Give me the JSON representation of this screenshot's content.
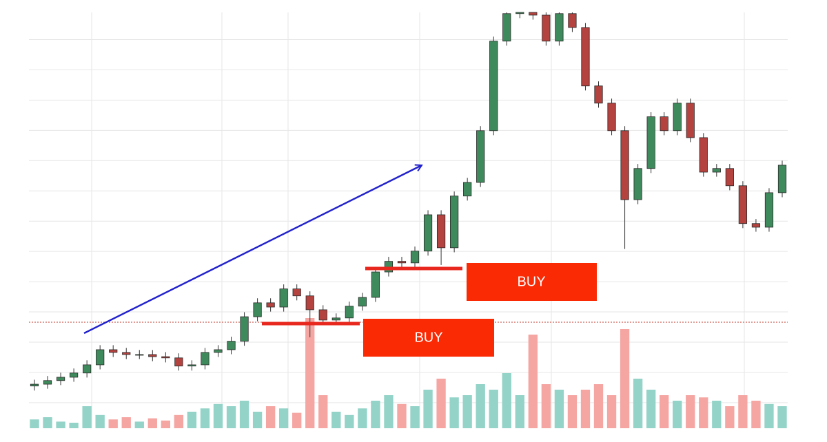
{
  "chart_data": {
    "type": "candlestick",
    "ylim": [
      -8,
      129
    ],
    "yticks": [
      0,
      10,
      20,
      30,
      40,
      50,
      60,
      70,
      80,
      90,
      100,
      110,
      120
    ],
    "grid": true,
    "up_color": "#3f8a5c",
    "down_color": "#b4423f",
    "open": [
      5.5,
      6.1,
      7.3,
      8.4,
      9.8,
      12.5,
      17.5,
      16.6,
      15.9,
      15.9,
      15.2,
      14.8,
      12.1,
      12.5,
      16.6,
      17.5,
      20.3,
      28.4,
      33.0,
      31.6,
      37.6,
      35.3,
      30.7,
      27.3,
      28.0,
      31.9,
      34.8,
      43.2,
      46.7,
      46.2,
      50.1,
      62.1,
      51.2,
      68.3,
      72.8,
      89.9,
      119.5,
      128.6,
      129.0,
      128.1,
      119.5,
      128.6,
      124.0,
      104.7,
      99.0,
      89.9,
      67.1,
      77.4,
      94.5,
      89.9,
      99.0,
      87.6,
      76.2,
      77.4,
      71.7,
      59.2,
      58.0,
      69.4
    ],
    "high": [
      7.6,
      8.8,
      9.9,
      11.3,
      14.0,
      19.0,
      19.0,
      18.1,
      17.4,
      17.4,
      16.7,
      16.3,
      14.0,
      18.1,
      19.0,
      21.8,
      29.9,
      34.5,
      34.5,
      39.1,
      39.1,
      36.8,
      32.2,
      29.5,
      33.4,
      36.3,
      44.7,
      48.2,
      48.2,
      51.6,
      63.6,
      63.6,
      69.8,
      74.3,
      91.4,
      121.0,
      129.0,
      129.0,
      129.0,
      129.0,
      129.0,
      129.0,
      125.5,
      106.2,
      100.5,
      91.4,
      78.9,
      96.0,
      96.0,
      100.5,
      100.5,
      89.1,
      78.9,
      78.9,
      73.2,
      60.7,
      70.9,
      80.0
    ],
    "low": [
      4.0,
      4.6,
      5.8,
      6.9,
      8.3,
      11.0,
      15.1,
      14.4,
      14.4,
      13.7,
      13.3,
      10.6,
      10.6,
      11.0,
      15.1,
      16.0,
      18.8,
      26.9,
      30.1,
      30.1,
      33.8,
      21.6,
      25.8,
      25.8,
      26.5,
      30.4,
      33.3,
      41.7,
      44.7,
      44.7,
      48.6,
      45.5,
      49.7,
      66.8,
      71.3,
      88.4,
      118.0,
      127.1,
      126.6,
      118.0,
      118.0,
      122.5,
      103.2,
      97.5,
      88.4,
      50.8,
      65.6,
      75.9,
      88.4,
      88.4,
      86.1,
      74.7,
      74.7,
      70.2,
      57.7,
      56.5,
      56.5,
      67.9
    ],
    "close": [
      6.1,
      7.3,
      8.4,
      9.8,
      12.5,
      17.5,
      16.6,
      15.9,
      15.9,
      15.2,
      14.8,
      12.1,
      12.5,
      16.6,
      17.5,
      20.3,
      28.4,
      33.0,
      31.6,
      37.6,
      35.3,
      30.7,
      27.3,
      28.0,
      31.9,
      34.8,
      43.2,
      46.7,
      46.2,
      50.1,
      62.1,
      51.2,
      68.3,
      72.8,
      89.9,
      119.5,
      128.6,
      129.0,
      128.1,
      119.5,
      128.6,
      124.0,
      104.7,
      99.0,
      89.9,
      67.1,
      77.4,
      94.5,
      89.9,
      99.0,
      87.6,
      76.2,
      77.4,
      71.7,
      59.2,
      58.0,
      69.4,
      78.5
    ],
    "volume": {
      "axis": "y2",
      "up_color": "#93d3c8",
      "down_color": "#f5a6a3",
      "values": [
        8,
        10,
        6,
        5,
        20,
        12,
        8,
        10,
        6,
        9,
        7,
        12,
        15,
        18,
        22,
        20,
        25,
        15,
        20,
        18,
        14,
        100,
        30,
        15,
        12,
        18,
        25,
        30,
        22,
        20,
        35,
        45,
        28,
        30,
        40,
        35,
        50,
        30,
        85,
        40,
        35,
        30,
        35,
        40,
        30,
        90,
        45,
        35,
        30,
        25,
        30,
        28,
        25,
        20,
        30,
        25,
        22,
        20
      ]
    },
    "y2lim": [
      0,
      100
    ],
    "annotations": [
      "BUY",
      "BUY"
    ]
  }
}
